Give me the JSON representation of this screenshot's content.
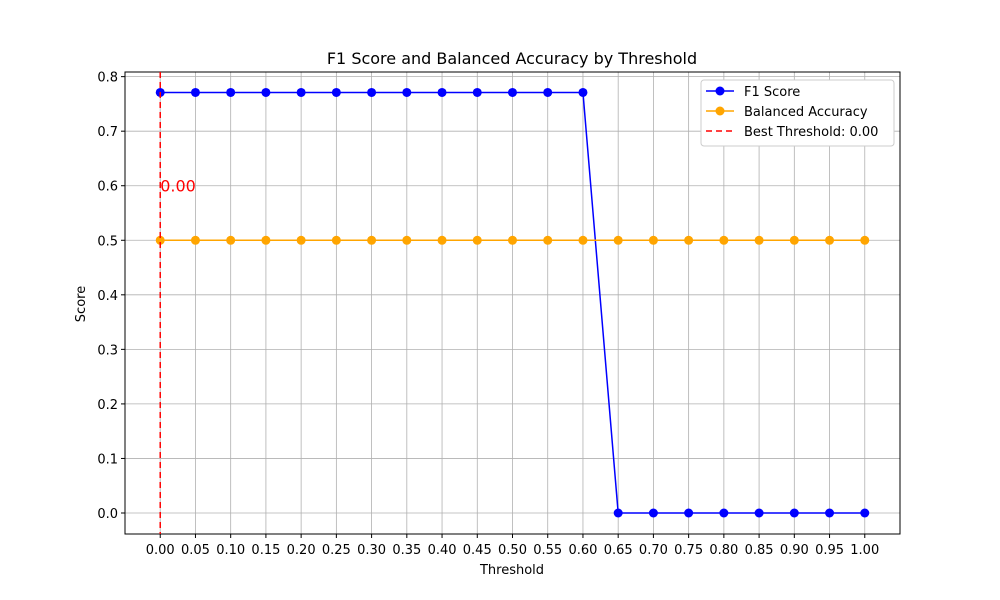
{
  "chart_data": {
    "type": "line",
    "title": "F1 Score and Balanced Accuracy by Threshold",
    "xlabel": "Threshold",
    "ylabel": "Score",
    "x": [
      0.0,
      0.05,
      0.1,
      0.15,
      0.2,
      0.25,
      0.3,
      0.35,
      0.4,
      0.45,
      0.5,
      0.55,
      0.6,
      0.65,
      0.7,
      0.75,
      0.8,
      0.85,
      0.9,
      0.95,
      1.0
    ],
    "x_tick_labels": [
      "0.00",
      "0.05",
      "0.10",
      "0.15",
      "0.20",
      "0.25",
      "0.30",
      "0.35",
      "0.40",
      "0.45",
      "0.50",
      "0.55",
      "0.60",
      "0.65",
      "0.70",
      "0.75",
      "0.80",
      "0.85",
      "0.90",
      "0.95",
      "1.00"
    ],
    "y_ticks": [
      0.0,
      0.1,
      0.2,
      0.3,
      0.4,
      0.5,
      0.6,
      0.7,
      0.8
    ],
    "y_tick_labels": [
      "0.0",
      "0.1",
      "0.2",
      "0.3",
      "0.4",
      "0.5",
      "0.6",
      "0.7",
      "0.8"
    ],
    "xlim": [
      -0.05,
      1.05
    ],
    "ylim": [
      -0.0385,
      0.8085
    ],
    "grid": true,
    "legend_position": "top-right",
    "series": [
      {
        "name": "F1 Score",
        "color": "#0000ff",
        "marker": "circle",
        "values": [
          0.771,
          0.771,
          0.771,
          0.771,
          0.771,
          0.771,
          0.771,
          0.771,
          0.771,
          0.771,
          0.771,
          0.771,
          0.771,
          0.0,
          0.0,
          0.0,
          0.0,
          0.0,
          0.0,
          0.0,
          0.0
        ]
      },
      {
        "name": "Balanced Accuracy",
        "color": "#ffa500",
        "marker": "circle",
        "values": [
          0.5,
          0.5,
          0.5,
          0.5,
          0.5,
          0.5,
          0.5,
          0.5,
          0.5,
          0.5,
          0.5,
          0.5,
          0.5,
          0.5,
          0.5,
          0.5,
          0.5,
          0.5,
          0.5,
          0.5,
          0.5
        ]
      }
    ],
    "reference_line": {
      "name": "Best Threshold: 0.00",
      "orientation": "vertical",
      "x": 0.0,
      "color": "#ff0000",
      "style": "dashed"
    },
    "annotation": {
      "text": "0.00",
      "x": 0.0,
      "y": 0.6,
      "color": "#ff0000"
    }
  }
}
